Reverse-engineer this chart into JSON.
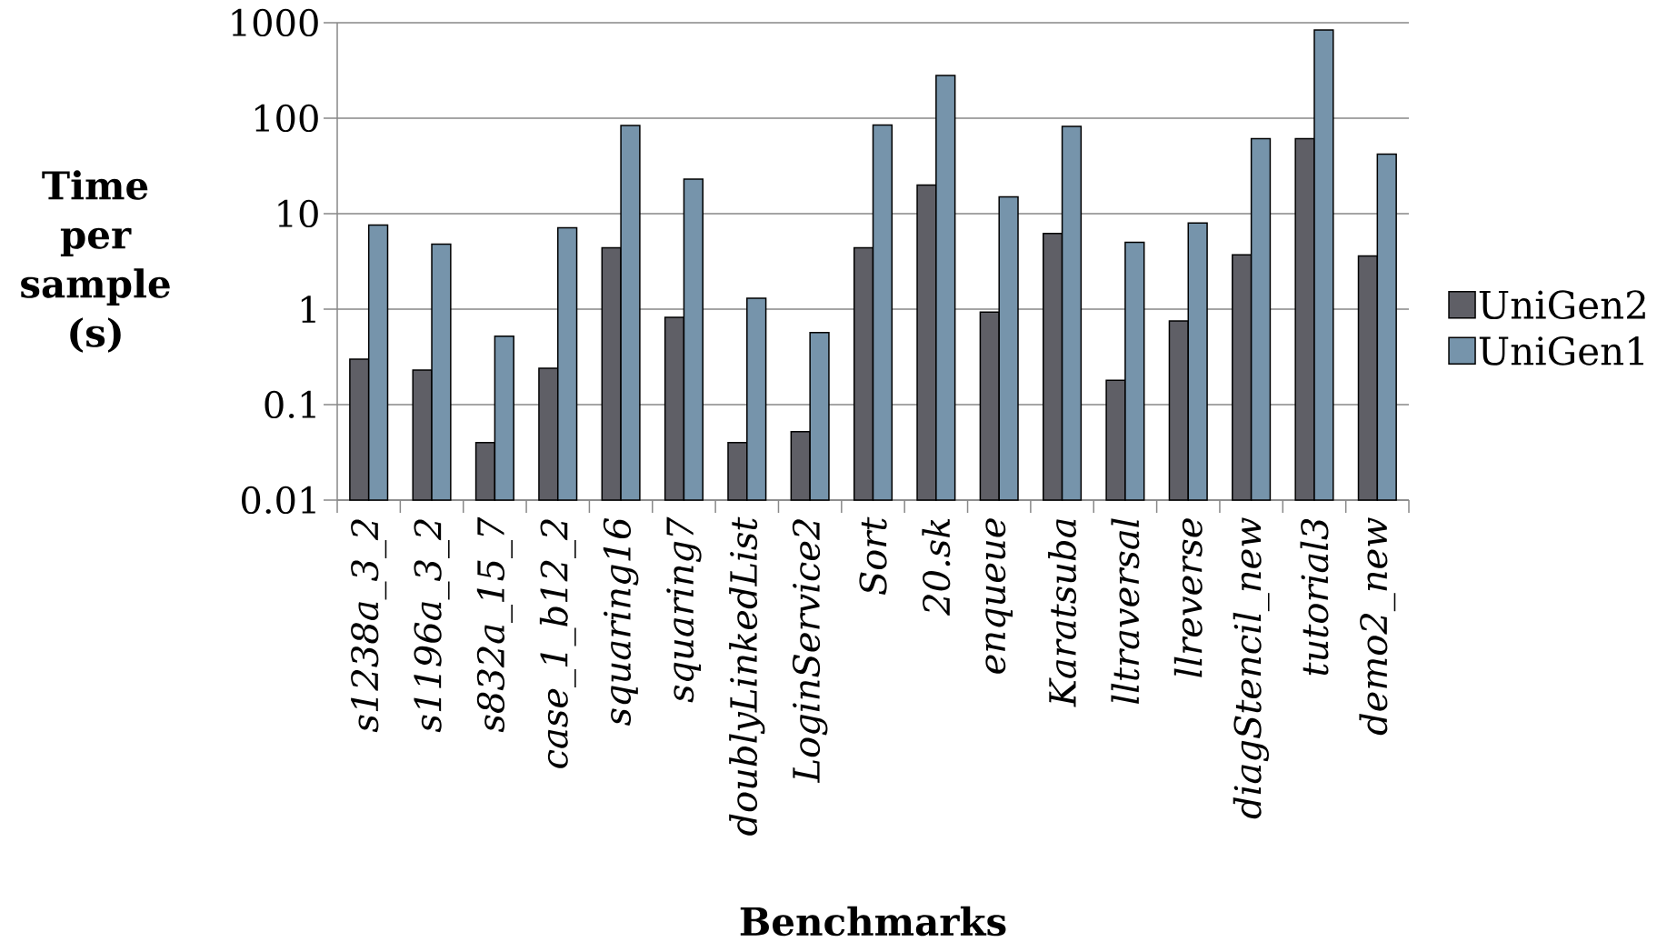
{
  "chart_data": {
    "type": "bar",
    "xlabel": "Benchmarks",
    "ylabel": "Time per sample (s)",
    "categories": [
      "s1238a_3_2",
      "s1196a_3_2",
      "s832a_15_7",
      "case_1_b12_2",
      "squaring16",
      "squaring7",
      "doublyLinkedList",
      "LoginService2",
      "Sort",
      "20.sk",
      "enqueue",
      "Karatsuba",
      "lltraversal",
      "llreverse",
      "diagStencil_new",
      "tutorial3",
      "demo2_new"
    ],
    "series": [
      {
        "name": "UniGen2",
        "color": "#5f5f66",
        "values": [
          0.3,
          0.23,
          0.04,
          0.24,
          4.4,
          0.82,
          0.04,
          0.052,
          4.4,
          20,
          0.93,
          6.2,
          0.18,
          0.75,
          3.7,
          61,
          3.6
        ]
      },
      {
        "name": "UniGen1",
        "color": "#7694ab",
        "values": [
          7.6,
          4.8,
          0.52,
          7.1,
          84,
          23,
          1.3,
          0.57,
          85,
          280,
          15,
          82,
          5,
          8,
          61,
          840,
          42
        ]
      }
    ],
    "log": "y",
    "ylim": [
      0.01,
      1000
    ],
    "yticks": [
      0.01,
      0.1,
      1,
      10,
      100,
      1000
    ],
    "grid": "y",
    "legend": "right"
  }
}
